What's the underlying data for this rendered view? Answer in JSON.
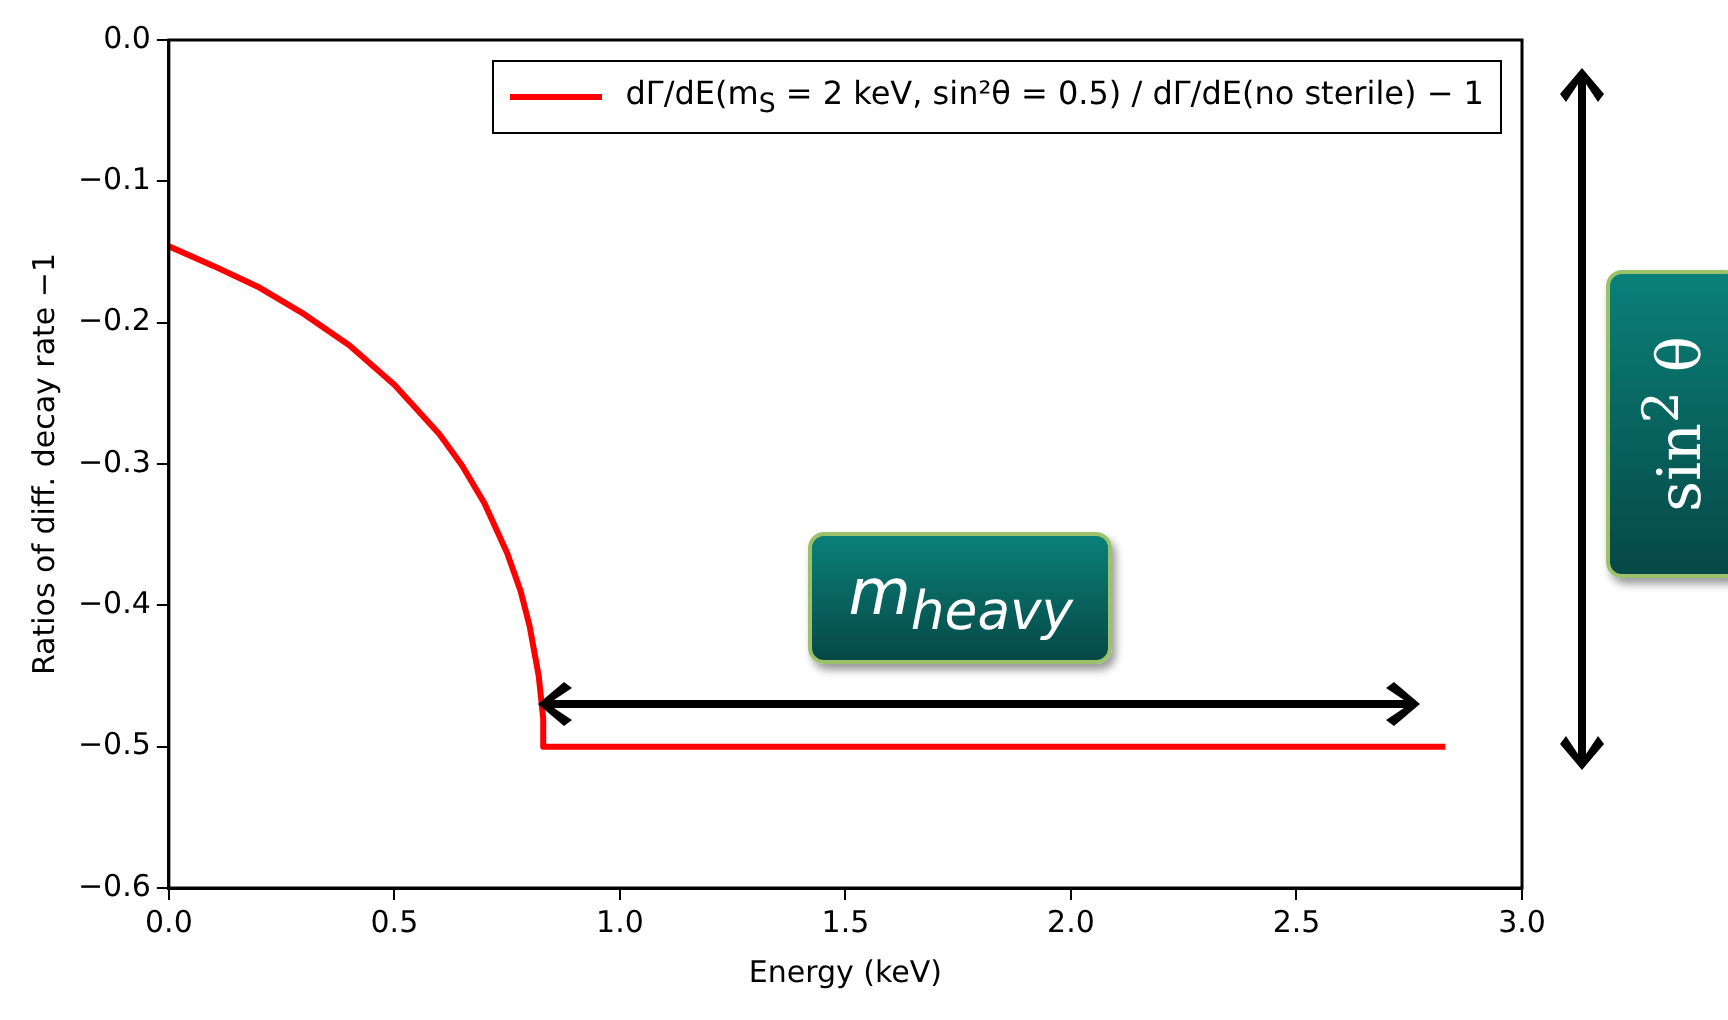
{
  "chart_data": {
    "type": "line",
    "xlabel": "Energy (keV)",
    "ylabel": "Ratios of diff. decay rate −1",
    "xlim": [
      0,
      3
    ],
    "ylim": [
      -0.6,
      0
    ],
    "xticks": [
      {
        "value": 0,
        "label": "0.0"
      },
      {
        "value": 0.5,
        "label": "0.5"
      },
      {
        "value": 1,
        "label": "1.0"
      },
      {
        "value": 1.5,
        "label": "1.5"
      },
      {
        "value": 2,
        "label": "2.0"
      },
      {
        "value": 2.5,
        "label": "2.5"
      },
      {
        "value": 3,
        "label": "3.0"
      }
    ],
    "yticks": [
      {
        "value": 0,
        "label": "0.0"
      },
      {
        "value": -0.1,
        "label": "−0.1"
      },
      {
        "value": -0.2,
        "label": "−0.2"
      },
      {
        "value": -0.3,
        "label": "−0.3"
      },
      {
        "value": -0.4,
        "label": "−0.4"
      },
      {
        "value": -0.5,
        "label": "−0.5"
      },
      {
        "value": -0.6,
        "label": "−0.6"
      }
    ],
    "series": [
      {
        "name": "dΓ/dE(m$_{S}$ = 2 keV, sin²θ = 0.5) / dΓ/dE(no sterile) − 1",
        "color": "#ff0000",
        "x": [
          0,
          0.1,
          0.2,
          0.3,
          0.4,
          0.5,
          0.6,
          0.65,
          0.7,
          0.75,
          0.78,
          0.8,
          0.82,
          0.83,
          0.83,
          2.83
        ],
        "values": [
          -0.146,
          -0.16,
          -0.175,
          -0.194,
          -0.216,
          -0.244,
          -0.279,
          -0.301,
          -0.328,
          -0.363,
          -0.39,
          -0.415,
          -0.45,
          -0.48,
          -0.5,
          -0.5
        ]
      }
    ],
    "legend": "top right",
    "marker": "none",
    "line_style": "solid",
    "grid": false,
    "annotations": [
      "m$_{heavy}$",
      "sin$^{2}$ θ"
    ]
  }
}
